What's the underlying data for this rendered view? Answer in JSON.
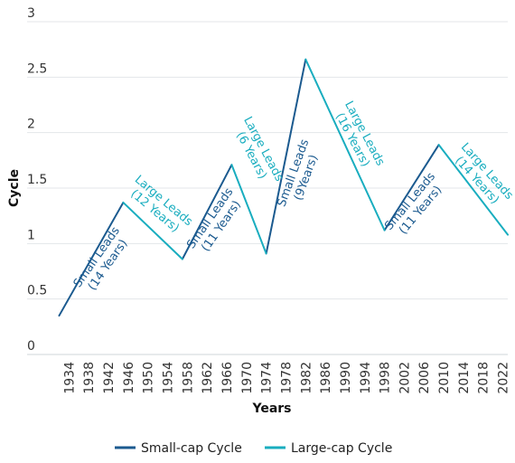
{
  "chart_data": {
    "type": "line",
    "xlabel": "Years",
    "ylabel": "Cycle",
    "ylim": [
      0,
      3
    ],
    "xlim": [
      1931,
      2023
    ],
    "yticks": [
      "0",
      "0.5",
      "1",
      "1.5",
      "2",
      "2.5",
      "3"
    ],
    "xticks": [
      "1934",
      "1938",
      "1942",
      "1946",
      "1950",
      "1954",
      "1958",
      "1962",
      "1966",
      "1970",
      "1974",
      "1978",
      "1982",
      "1986",
      "1990",
      "1994",
      "1998",
      "2002",
      "2006",
      "2010",
      "2014",
      "2018",
      "2022"
    ],
    "grid": "horizontal",
    "legend_position": "bottom",
    "colors": {
      "small": "#1b5a8f",
      "large": "#19adbf",
      "grid": "#e3e6ea",
      "axis": "#cfd4da"
    },
    "series": [
      {
        "name": "Small-cap Cycle",
        "key": "small",
        "segments": [
          [
            [
              1932,
              0.35
            ],
            [
              1945,
              1.37
            ]
          ],
          [
            [
              1957,
              0.86
            ],
            [
              1967,
              1.71
            ]
          ],
          [
            [
              1974,
              0.91
            ],
            [
              1982,
              2.66
            ]
          ],
          [
            [
              1998,
              1.12
            ],
            [
              2009,
              1.89
            ]
          ]
        ]
      },
      {
        "name": "Large-cap Cycle",
        "key": "large",
        "segments": [
          [
            [
              1945,
              1.37
            ],
            [
              1957,
              0.86
            ]
          ],
          [
            [
              1967,
              1.71
            ],
            [
              1974,
              0.91
            ]
          ],
          [
            [
              1982,
              2.66
            ],
            [
              1998,
              1.12
            ]
          ],
          [
            [
              2009,
              1.89
            ],
            [
              2023,
              1.08
            ]
          ]
        ]
      }
    ],
    "annotations": [
      {
        "lines": [
          "Small Leads",
          "(14 Years)"
        ],
        "series": "small",
        "x": 1940.5,
        "y": 0.85,
        "angle": -55
      },
      {
        "lines": [
          "Large Leads",
          "(12 Years)"
        ],
        "series": "large",
        "x": 1952.5,
        "y": 1.35,
        "angle": 40
      },
      {
        "lines": [
          "Small Leads",
          "(11 Years)"
        ],
        "series": "small",
        "x": 1963.5,
        "y": 1.2,
        "angle": -55
      },
      {
        "lines": [
          "Large Leads",
          "(6 Years)"
        ],
        "series": "large",
        "x": 1972.5,
        "y": 1.83,
        "angle": 62
      },
      {
        "lines": [
          "Small Leads",
          "(9Years)"
        ],
        "series": "small",
        "x": 1980.5,
        "y": 1.62,
        "angle": -70
      },
      {
        "lines": [
          "Large Leads",
          "(16 Years)"
        ],
        "series": "large",
        "x": 1993,
        "y": 1.97,
        "angle": 62
      },
      {
        "lines": [
          "Small Leads",
          "(11 Years)"
        ],
        "series": "small",
        "x": 2004,
        "y": 1.35,
        "angle": -50
      },
      {
        "lines": [
          "Large Leads",
          "(14 Years)"
        ],
        "series": "large",
        "x": 2018,
        "y": 1.62,
        "angle": 48
      }
    ]
  }
}
